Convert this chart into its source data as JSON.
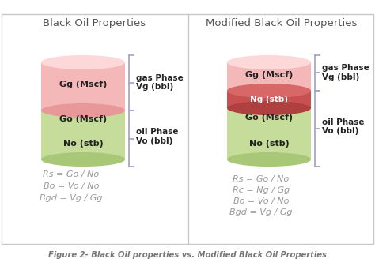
{
  "title_left": "Black Oil Properties",
  "title_right": "Modified Black Oil Properties",
  "caption": "Figure 2- Black Oil properties vs. Modified Black Oil Properties",
  "panel_bg": "#ffffff",
  "border_color": "#c8c8c8",
  "left_equations": [
    "Rs = Go / No",
    "Bo = Vo / No",
    "Bgd = Vg / Gg"
  ],
  "right_equations": [
    "Rs = Go / No",
    "Rc = Ng / Gg",
    "Bo = Vo / No",
    "Bgd = Vg / Gg"
  ],
  "eq_color": "#999999",
  "gas_face": "#f5b8b8",
  "gas_top": "#fdd8d8",
  "gas_edge": "#e89898",
  "oil_face": "#c5dc9a",
  "oil_top": "#d5e8aa",
  "oil_edge": "#a8c878",
  "ng_face": "#c85050",
  "ng_top": "#d86868",
  "ng_edge": "#b04040",
  "label_gas": "Gg (Mscf)",
  "label_go": "Go (Mscf)",
  "label_no": "No (stb)",
  "label_ng": "Ng (stb)",
  "annot_gas": "gas Phase\nVg (bbl)",
  "annot_oil": "oil Phase\nVo (bbl)",
  "bracket_color": "#a8a8c8",
  "title_color": "#555555",
  "annot_color": "#222222",
  "label_color": "#222222",
  "eq_italic": true,
  "caption_color": "#777777"
}
